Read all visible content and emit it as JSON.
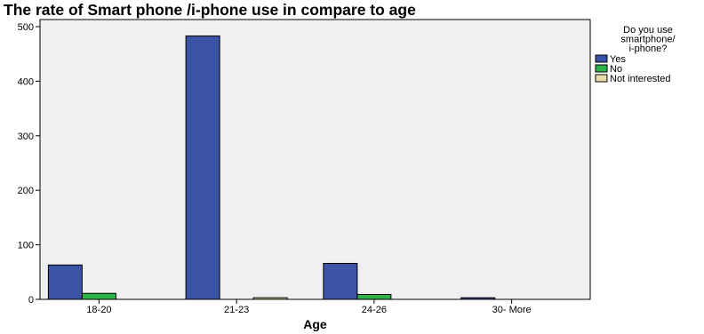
{
  "chart_data": {
    "type": "bar",
    "title": "The rate of Smart phone /i-phone use in compare to age",
    "xlabel": "Age",
    "ylabel": "",
    "categories": [
      "18-20",
      "21-23",
      "24-26",
      "30- More"
    ],
    "series": [
      {
        "name": "Yes",
        "values": [
          63,
          483,
          66,
          3
        ],
        "color": "#3a53a4"
      },
      {
        "name": "No",
        "values": [
          11,
          0,
          9,
          0
        ],
        "color": "#2db34a"
      },
      {
        "name": "Not interested",
        "values": [
          0,
          3,
          0,
          0
        ],
        "color": "#e8dca8"
      }
    ],
    "ylim": [
      0,
      500
    ],
    "yticks": [
      0,
      100,
      200,
      300,
      400,
      500
    ],
    "legend": {
      "title": "Do you use smartphone/ i-phone?",
      "title_lines": [
        "Do you use",
        "smartphone/",
        "i-phone?"
      ],
      "placement": "right"
    },
    "grid": false,
    "plot_background": "#f0f0f0"
  }
}
